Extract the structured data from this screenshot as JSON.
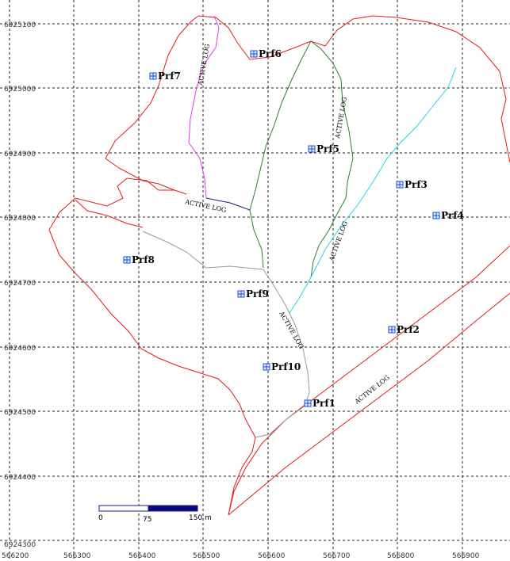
{
  "y_axis_labels": [
    "6925100",
    "6925000",
    "6924900",
    "6924800",
    "6924700",
    "6924600",
    "6924500",
    "6924400",
    "6924300"
  ],
  "x_axis_labels": [
    "566200",
    "566300",
    "566400",
    "566500",
    "566600",
    "566700",
    "566800",
    "566900"
  ],
  "points": [
    {
      "label": "Prf1",
      "icon": "borehole-icon"
    },
    {
      "label": "Prf2",
      "icon": "borehole-icon"
    },
    {
      "label": "Prf3",
      "icon": "borehole-icon"
    },
    {
      "label": "Prf4",
      "icon": "borehole-icon"
    },
    {
      "label": "Prf5",
      "icon": "borehole-icon"
    },
    {
      "label": "Prf6",
      "icon": "borehole-icon"
    },
    {
      "label": "Prf7",
      "icon": "borehole-icon"
    },
    {
      "label": "Prf8",
      "icon": "borehole-icon"
    },
    {
      "label": "Prf9",
      "icon": "borehole-icon"
    },
    {
      "label": "Prf10",
      "icon": "borehole-icon"
    }
  ],
  "road_labels": [
    "ACTIVE LOG",
    "ACTIVE LOG",
    "ACTIVE LOG",
    "ACTIVE LOG",
    "ACTIVE LOG",
    "ACTIVE LOG"
  ],
  "scale_bar": {
    "labels": [
      "0",
      "75",
      "150 m"
    ]
  },
  "colors": {
    "boundary": "#e21b1b",
    "road_magenta": "#e040e0",
    "road_navy": "#1a1a80",
    "road_green": "#2e7d2e",
    "road_cyan": "#22d4e8",
    "road_gray": "#9a9a9a",
    "road_red": "#e21b1b",
    "marker": "#1a4fe0"
  }
}
